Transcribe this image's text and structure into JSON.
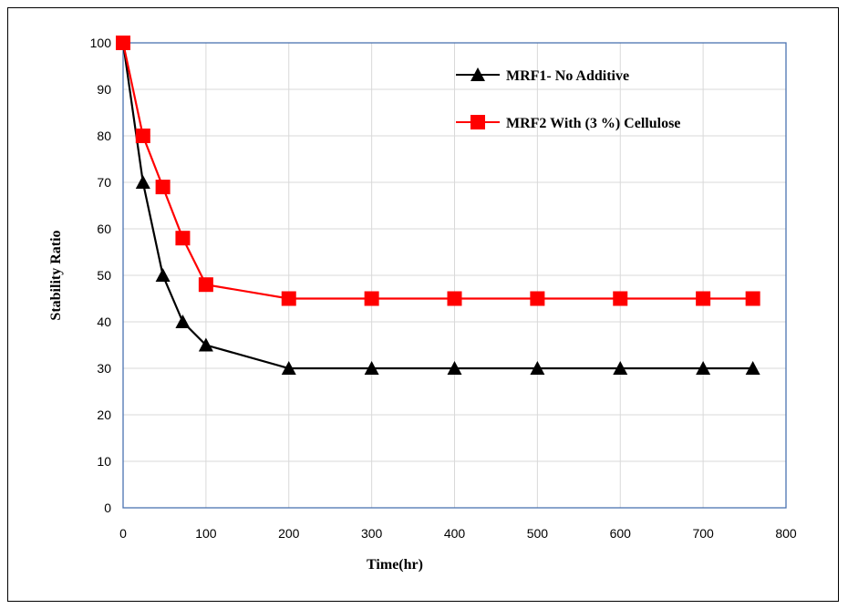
{
  "chart_data": {
    "type": "line",
    "xlabel": "Time(hr)",
    "ylabel": "Stability  Ratio",
    "xlim": [
      0,
      800
    ],
    "ylim": [
      0,
      100
    ],
    "xticks": [
      0,
      100,
      200,
      300,
      400,
      500,
      600,
      700,
      800
    ],
    "yticks": [
      0,
      10,
      20,
      30,
      40,
      50,
      60,
      70,
      80,
      90,
      100
    ],
    "grid": true,
    "legend_position": "top-right",
    "series": [
      {
        "name": "MRF1- No Additive",
        "color": "#000000",
        "marker": "triangle",
        "x": [
          0,
          24,
          48,
          72,
          100,
          200,
          300,
          400,
          500,
          600,
          700,
          760
        ],
        "y": [
          100,
          70,
          50,
          40,
          35,
          30,
          30,
          30,
          30,
          30,
          30,
          30
        ]
      },
      {
        "name": "MRF2 With  (3 %) Cellulose",
        "color": "#ff0000",
        "marker": "square",
        "x": [
          0,
          24,
          48,
          72,
          100,
          200,
          300,
          400,
          500,
          600,
          700,
          760
        ],
        "y": [
          100,
          80,
          69,
          58,
          48,
          45,
          45,
          45,
          45,
          45,
          45,
          45
        ]
      }
    ]
  },
  "colors": {
    "plot_border": "#4a72b0",
    "grid": "#d9d9d9"
  }
}
